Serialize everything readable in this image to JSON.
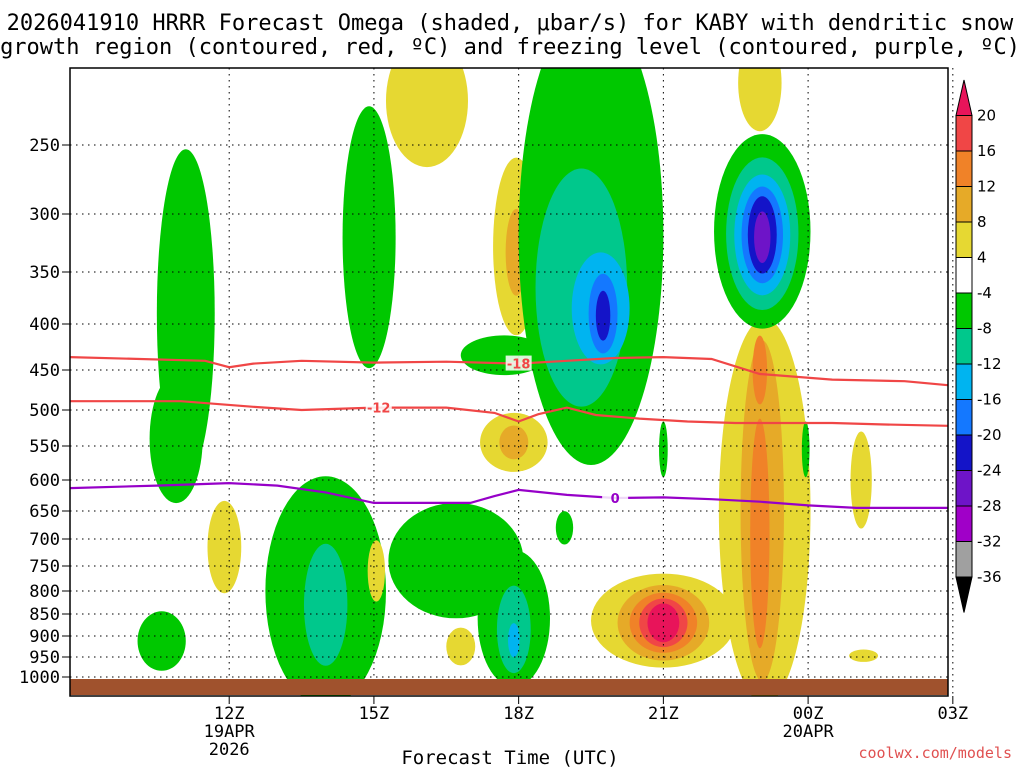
{
  "chart_data": {
    "type": "heatmap",
    "title_line1": "2026041910 HRRR Forecast Omega (shaded, μbar/s) for KABY with dendritic snow",
    "title_line2": "growth region (contoured, red, ºC) and freezing level (contoured, purple, ºC)",
    "xlabel": "Forecast Time (UTC)",
    "credit": "coolwx.com/models",
    "y_axis": {
      "unit": "hPa",
      "ticks": [
        250,
        300,
        350,
        400,
        450,
        500,
        550,
        600,
        650,
        700,
        750,
        800,
        850,
        900,
        950,
        1000
      ],
      "labels": [
        "250",
        "300",
        "350",
        "400",
        "450",
        "500",
        "550",
        "600",
        "650",
        "700",
        "750",
        "800",
        "850",
        "900",
        "950",
        "1000"
      ]
    },
    "x_axis": {
      "unit": "hours since 2026-04-19 12Z",
      "range": [
        -3.3,
        14.9
      ],
      "ticks": [
        {
          "h": 0,
          "label": "12Z",
          "sub1": "19APR",
          "sub2": "2026"
        },
        {
          "h": 3,
          "label": "15Z",
          "sub1": "",
          "sub2": ""
        },
        {
          "h": 6,
          "label": "18Z",
          "sub1": "",
          "sub2": ""
        },
        {
          "h": 9,
          "label": "21Z",
          "sub1": "",
          "sub2": ""
        },
        {
          "h": 12,
          "label": "00Z",
          "sub1": "20APR",
          "sub2": ""
        },
        {
          "h": 15,
          "label": "03Z",
          "sub1": "",
          "sub2": ""
        }
      ]
    },
    "colorbar": {
      "levels": [
        "20",
        "16",
        "12",
        "8",
        "4",
        "-4",
        "-8",
        "-12",
        "-16",
        "-20",
        "-24",
        "-28",
        "-32",
        "-36"
      ],
      "colors": [
        "#e8145a",
        "#f04646",
        "#f08228",
        "#e6aa28",
        "#e6d832",
        "#ffffff",
        "#00c800",
        "#00c88c",
        "#00b4f0",
        "#1478ff",
        "#1414c8",
        "#6e14c8",
        "#a000c8",
        "#a0a0a0",
        "#000000"
      ]
    },
    "contours": [
      {
        "name": "dgz-top",
        "value": -18,
        "label": "-18",
        "label_at": 6.0,
        "color": "#f04646",
        "points": [
          [
            -3.3,
            436
          ],
          [
            -0.5,
            440
          ],
          [
            0.0,
            447
          ],
          [
            0.5,
            443
          ],
          [
            1.5,
            440
          ],
          [
            3.0,
            442
          ],
          [
            4.5,
            441
          ],
          [
            6.0,
            443
          ],
          [
            7.0,
            440
          ],
          [
            8.0,
            437
          ],
          [
            9.0,
            436
          ],
          [
            10.0,
            438
          ],
          [
            11.0,
            455
          ],
          [
            12.5,
            462
          ],
          [
            14.0,
            464
          ],
          [
            14.9,
            469
          ]
        ]
      },
      {
        "name": "dgz-bottom",
        "value": -12,
        "label": "-12",
        "label_at": 3.1,
        "color": "#f04646",
        "points": [
          [
            -3.3,
            489
          ],
          [
            -1.0,
            489
          ],
          [
            0.5,
            496
          ],
          [
            1.5,
            500
          ],
          [
            3.0,
            497
          ],
          [
            4.5,
            497
          ],
          [
            5.5,
            504
          ],
          [
            6.0,
            516
          ],
          [
            6.4,
            506
          ],
          [
            7.0,
            497
          ],
          [
            7.6,
            507
          ],
          [
            8.5,
            512
          ],
          [
            9.5,
            516
          ],
          [
            10.5,
            518
          ],
          [
            11.5,
            518
          ],
          [
            12.5,
            518
          ],
          [
            13.5,
            520
          ],
          [
            14.9,
            522
          ]
        ]
      },
      {
        "name": "freezing-level",
        "value": 0,
        "label": "0",
        "label_at": 8.0,
        "color": "#9600c8",
        "points": [
          [
            -3.3,
            613
          ],
          [
            -1.5,
            609
          ],
          [
            0.0,
            605
          ],
          [
            1.0,
            609
          ],
          [
            2.0,
            620
          ],
          [
            3.0,
            637
          ],
          [
            4.0,
            637
          ],
          [
            5.0,
            637
          ],
          [
            5.5,
            626
          ],
          [
            6.0,
            616
          ],
          [
            7.0,
            624
          ],
          [
            8.0,
            629
          ],
          [
            9.0,
            628
          ],
          [
            10.0,
            631
          ],
          [
            11.0,
            635
          ],
          [
            12.0,
            641
          ],
          [
            13.0,
            645
          ],
          [
            14.9,
            645
          ]
        ]
      }
    ],
    "regions": [
      {
        "name": "green-1050-upper-a",
        "level": "-8",
        "color": "#00c800",
        "cx": -0.9,
        "cy": 390,
        "rx": 0.6,
        "ry": 160
      },
      {
        "name": "green-1050-upper-b",
        "level": "-8",
        "color": "#00c800",
        "cx": -1.1,
        "cy": 540,
        "rx": 0.55,
        "ry": 90
      },
      {
        "name": "green-1050-low",
        "level": "-8",
        "color": "#00c800",
        "cx": -1.4,
        "cy": 912,
        "rx": 0.5,
        "ry": 70
      },
      {
        "name": "yellow-1120",
        "level": "4",
        "color": "#e6d832",
        "cx": -0.1,
        "cy": 715,
        "rx": 0.35,
        "ry": 85
      },
      {
        "name": "green-1330",
        "level": "-8",
        "color": "#00c800",
        "cx": 2.0,
        "cy": 800,
        "rx": 1.25,
        "ry": 230
      },
      {
        "name": "teal-1330",
        "level": "-12",
        "color": "#00c88c",
        "cx": 2.0,
        "cy": 830,
        "rx": 0.45,
        "ry": 130
      },
      {
        "name": "yellow-1518",
        "level": "4",
        "color": "#e6d832",
        "cx": 3.05,
        "cy": 760,
        "rx": 0.18,
        "ry": 60
      },
      {
        "name": "green-1500-upper",
        "level": "-8",
        "color": "#00c800",
        "cx": 2.9,
        "cy": 320,
        "rx": 0.55,
        "ry": 110
      },
      {
        "name": "yellow-1600-top",
        "level": "4",
        "color": "#e6d832",
        "cx": 4.1,
        "cy": 218,
        "rx": 0.85,
        "ry": 48
      },
      {
        "name": "green-1700-low-a",
        "level": "-8",
        "color": "#00c800",
        "cx": 4.7,
        "cy": 740,
        "rx": 1.4,
        "ry": 110
      },
      {
        "name": "green-1700-low-b",
        "level": "-8",
        "color": "#00c800",
        "cx": 5.9,
        "cy": 860,
        "rx": 0.75,
        "ry": 150
      },
      {
        "name": "teal-1800-low",
        "level": "-12",
        "color": "#00c88c",
        "cx": 5.9,
        "cy": 885,
        "rx": 0.35,
        "ry": 100
      },
      {
        "name": "cyan-1800-low",
        "level": "-16",
        "color": "#00b4f0",
        "cx": 5.9,
        "cy": 910,
        "rx": 0.12,
        "ry": 40
      },
      {
        "name": "yellow-1630",
        "level": "4",
        "color": "#e6d832",
        "cx": 4.8,
        "cy": 925,
        "rx": 0.3,
        "ry": 45
      },
      {
        "name": "yellow-1800-upper",
        "level": "4",
        "color": "#e6d832",
        "cx": 5.95,
        "cy": 328,
        "rx": 0.48,
        "ry": 75
      },
      {
        "name": "orange-1800-upper",
        "level": "8",
        "color": "#e6aa28",
        "cx": 5.95,
        "cy": 333,
        "rx": 0.22,
        "ry": 38
      },
      {
        "name": "yellow-1800-mid",
        "level": "4",
        "color": "#e6d832",
        "cx": 5.9,
        "cy": 545,
        "rx": 0.7,
        "ry": 42
      },
      {
        "name": "orange-1800-mid",
        "level": "8",
        "color": "#e6aa28",
        "cx": 5.9,
        "cy": 545,
        "rx": 0.3,
        "ry": 24
      },
      {
        "name": "green-2000-big",
        "level": "-8",
        "color": "#00c800",
        "cx": 7.5,
        "cy": 318,
        "rx": 1.5,
        "ry": 200
      },
      {
        "name": "green-1800-shelf",
        "level": "-8",
        "color": "#00c800",
        "cx": 5.7,
        "cy": 434,
        "rx": 0.9,
        "ry": 22
      },
      {
        "name": "teal-2000",
        "level": "-12",
        "color": "#00c88c",
        "cx": 7.3,
        "cy": 365,
        "rx": 0.95,
        "ry": 110
      },
      {
        "name": "cyan-2000",
        "level": "-16",
        "color": "#00b4f0",
        "cx": 7.7,
        "cy": 385,
        "rx": 0.6,
        "ry": 55
      },
      {
        "name": "blue-2000",
        "level": "-20",
        "color": "#1478ff",
        "cx": 7.75,
        "cy": 390,
        "rx": 0.3,
        "ry": 40
      },
      {
        "name": "navy-2000",
        "level": "-24",
        "color": "#1414c8",
        "cx": 7.75,
        "cy": 392,
        "rx": 0.15,
        "ry": 25
      },
      {
        "name": "green-1915",
        "level": "-8",
        "color": "#00c800",
        "cx": 6.95,
        "cy": 680,
        "rx": 0.18,
        "ry": 30
      },
      {
        "name": "green-2100-thin",
        "level": "-8",
        "color": "#00c800",
        "cx": 9.0,
        "cy": 555,
        "rx": 0.09,
        "ry": 40
      },
      {
        "name": "yellow-2100-low",
        "level": "4",
        "color": "#e6d832",
        "cx": 9.0,
        "cy": 865,
        "rx": 1.5,
        "ry": 105
      },
      {
        "name": "orange-2100-low",
        "level": "8",
        "color": "#e6aa28",
        "cx": 9.0,
        "cy": 870,
        "rx": 0.95,
        "ry": 85
      },
      {
        "name": "darkorange-2100-low",
        "level": "12",
        "color": "#f08228",
        "cx": 9.0,
        "cy": 870,
        "rx": 0.7,
        "ry": 68
      },
      {
        "name": "red-2100-low",
        "level": "16",
        "color": "#f04646",
        "cx": 9.0,
        "cy": 870,
        "rx": 0.5,
        "ry": 55
      },
      {
        "name": "pink-2100-low",
        "level": "20",
        "color": "#e8145a",
        "cx": 9.0,
        "cy": 870,
        "rx": 0.33,
        "ry": 44
      },
      {
        "name": "yellow-2300-column",
        "level": "4",
        "color": "#e6d832",
        "cx": 11.1,
        "cy": 650,
        "rx": 0.95,
        "ry": 300
      },
      {
        "name": "orange-2300-column",
        "level": "8",
        "color": "#e6aa28",
        "cx": 11.05,
        "cy": 650,
        "rx": 0.45,
        "ry": 270
      },
      {
        "name": "darkorange-2300-a",
        "level": "12",
        "color": "#f08228",
        "cx": 11.0,
        "cy": 450,
        "rx": 0.15,
        "ry": 40
      },
      {
        "name": "darkorange-2300-b",
        "level": "12",
        "color": "#f08228",
        "cx": 11.0,
        "cy": 690,
        "rx": 0.2,
        "ry": 200
      },
      {
        "name": "yellow-2300-top",
        "level": "4",
        "color": "#e6d832",
        "cx": 11.0,
        "cy": 205,
        "rx": 0.45,
        "ry": 35
      },
      {
        "name": "green-2300",
        "level": "-8",
        "color": "#00c800",
        "cx": 11.05,
        "cy": 315,
        "rx": 1.0,
        "ry": 80
      },
      {
        "name": "teal-2300",
        "level": "-12",
        "color": "#00c88c",
        "cx": 11.05,
        "cy": 317,
        "rx": 0.75,
        "ry": 63
      },
      {
        "name": "cyan-2300",
        "level": "-16",
        "color": "#00b4f0",
        "cx": 11.05,
        "cy": 318,
        "rx": 0.58,
        "ry": 50
      },
      {
        "name": "blue-2300",
        "level": "-20",
        "color": "#1478ff",
        "cx": 11.05,
        "cy": 318,
        "rx": 0.43,
        "ry": 40
      },
      {
        "name": "navy-2300",
        "level": "-24",
        "color": "#1414c8",
        "cx": 11.05,
        "cy": 318,
        "rx": 0.3,
        "ry": 32
      },
      {
        "name": "purple-2300",
        "level": "-28",
        "color": "#6e14c8",
        "cx": 11.05,
        "cy": 320,
        "rx": 0.17,
        "ry": 22
      },
      {
        "name": "green-0000",
        "level": "-8",
        "color": "#00c800",
        "cx": 11.95,
        "cy": 555,
        "rx": 0.08,
        "ry": 40
      },
      {
        "name": "yellow-0100",
        "level": "4",
        "color": "#e6d832",
        "cx": 13.1,
        "cy": 600,
        "rx": 0.22,
        "ry": 75
      },
      {
        "name": "yellow-0100-low",
        "level": "4",
        "color": "#e6d832",
        "cx": 13.15,
        "cy": 947,
        "rx": 0.3,
        "ry": 15
      }
    ]
  }
}
